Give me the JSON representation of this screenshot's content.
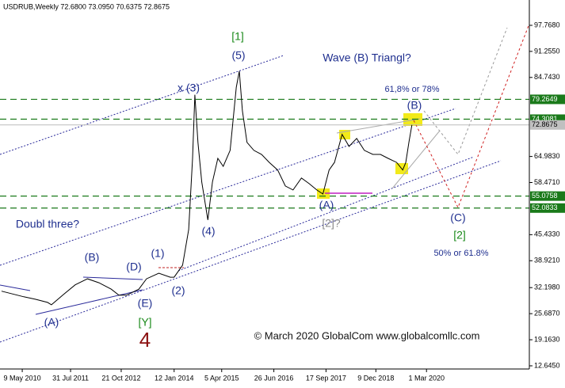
{
  "chart_data": {
    "type": "line",
    "header": "USDRUB,Weekly  72.6800 73.0950 70.6375 72.8675",
    "x": [
      2,
      31,
      46,
      62,
      67,
      83,
      98,
      114,
      129,
      145,
      155,
      165,
      181,
      191,
      207,
      222,
      227,
      238,
      246,
      251,
      254,
      258,
      263,
      271,
      277,
      284,
      291,
      300,
      308,
      312,
      316,
      322,
      331,
      341,
      351,
      362,
      372,
      382,
      393,
      403,
      413,
      421,
      429,
      436,
      446,
      455,
      465,
      475,
      486,
      496,
      506,
      517,
      525,
      529,
      533,
      537
    ],
    "values": [
      31.3,
      29.9,
      29.3,
      28.5,
      27.9,
      30.5,
      32.9,
      34.4,
      33.4,
      31.8,
      30.3,
      30.3,
      31.8,
      34.4,
      35.8,
      34.8,
      34.8,
      37.8,
      46.7,
      64.5,
      80.4,
      68.5,
      58.6,
      49.1,
      58.6,
      64.5,
      62.5,
      66.5,
      82.3,
      86.3,
      76.4,
      68.5,
      66.5,
      65.5,
      63.5,
      61.6,
      57.6,
      56.6,
      59.6,
      58.2,
      56.6,
      55.6,
      61.6,
      63.5,
      70.5,
      67.5,
      69.5,
      66.5,
      65.5,
      65.5,
      64.5,
      63.5,
      61.6,
      63.5,
      68.5,
      72.8675
    ],
    "color": "#000000",
    "xlim": [
      0,
      688
    ],
    "xticks": [
      {
        "value": 29,
        "label": "9 May 2010"
      },
      {
        "value": 92,
        "label": "31 Jul 2011"
      },
      {
        "value": 158,
        "label": "21 Oct 2012"
      },
      {
        "value": 227,
        "label": "12 Jan 2014"
      },
      {
        "value": 289,
        "label": "5 Apr 2015"
      },
      {
        "value": 357,
        "label": "26 Jun 2016"
      },
      {
        "value": 425,
        "label": "17 Sep 2017"
      },
      {
        "value": 490,
        "label": "9 Dec 2018"
      },
      {
        "value": 556,
        "label": "1 Mar 2020"
      }
    ],
    "ylim": [
      11.85,
      104.1
    ],
    "yticks": [
      {
        "value": 97.768,
        "label": "97.7680"
      },
      {
        "value": 91.255,
        "label": "91.2550"
      },
      {
        "value": 84.743,
        "label": "84.7430"
      },
      {
        "value": 64.983,
        "label": "64.9830"
      },
      {
        "value": 58.471,
        "label": "58.4710"
      },
      {
        "value": 45.433,
        "label": "45.4330"
      },
      {
        "value": 38.921,
        "label": "38.9210"
      },
      {
        "value": 32.198,
        "label": "32.1980"
      },
      {
        "value": 25.687,
        "label": "25.6870"
      },
      {
        "value": 19.163,
        "label": "19.1630"
      },
      {
        "value": 12.645,
        "label": "12.6450"
      }
    ],
    "levels": [
      79.2649,
      74.3081,
      55.0758,
      52.0833
    ],
    "level_color": "#1a7a1a",
    "last_price": 72.8675,
    "annotations": [
      {
        "text": "[1]",
        "color": "#1a8a1a"
      },
      {
        "text": "(5)",
        "color": "#1f2f8f"
      },
      {
        "text": "Wave (B) Triangl?",
        "color": "#1f2f8f"
      },
      {
        "text": "x (3)",
        "color": "#1f2f8f"
      },
      {
        "text": "61,8% or 78%",
        "color": "#1f2f8f"
      },
      {
        "text": "(B)",
        "color": "#1f2f8f"
      },
      {
        "text": "Doubl three?",
        "color": "#1f2f8f"
      },
      {
        "text": "(4)",
        "color": "#1f2f8f"
      },
      {
        "text": "(A)",
        "color": "#1f2f8f"
      },
      {
        "text": "[2]?",
        "color": "#888888"
      },
      {
        "text": "(C)",
        "color": "#1f2f8f"
      },
      {
        "text": "[2]",
        "color": "#1a8a1a"
      },
      {
        "text": "50% or 61.8%",
        "color": "#1f2f8f"
      },
      {
        "text": "(1)",
        "color": "#1f2f8f"
      },
      {
        "text": "(B)",
        "color": "#1f2f8f"
      },
      {
        "text": "(D)",
        "color": "#1f2f8f"
      },
      {
        "text": "(E)",
        "color": "#1f2f8f"
      },
      {
        "text": "(2)",
        "color": "#1f2f8f"
      },
      {
        "text": "[Y]",
        "color": "#1a8a1a"
      },
      {
        "text": "(A)",
        "color": "#1f2f8f"
      },
      {
        "text": "4",
        "color": "#8b1010"
      },
      {
        "text": "© March 2020 GlobalCom www.globalcomllc.com",
        "color": "#111111"
      }
    ]
  }
}
